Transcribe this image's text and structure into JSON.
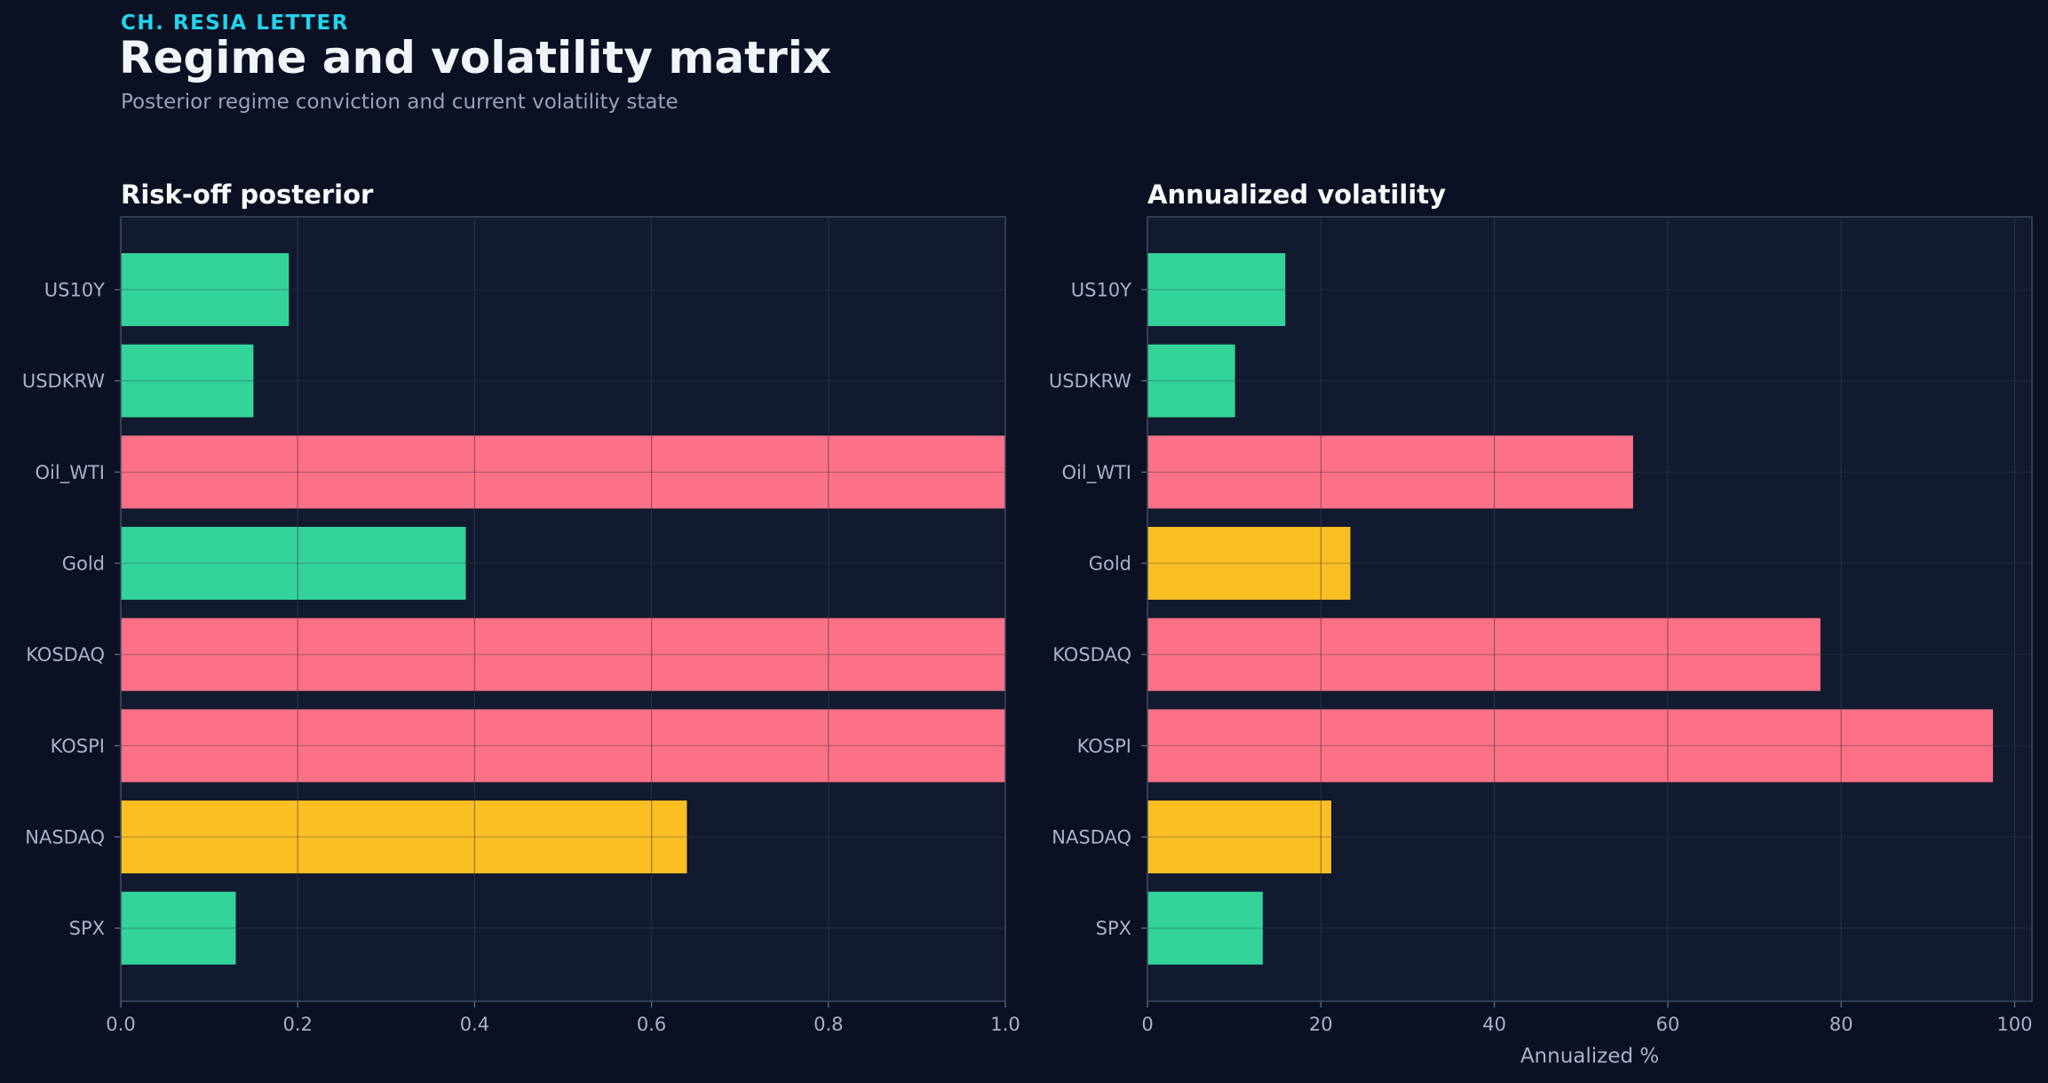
{
  "header": {
    "kicker": "CH. RESIA LETTER",
    "title": "Regime and volatility matrix",
    "subtitle": "Posterior regime conviction and current volatility state"
  },
  "colors": {
    "background": "#0b1122",
    "panel": "#121a2f",
    "green": "#34d399",
    "red": "#fb7185",
    "yellow": "#fbbf24",
    "accent": "#22d3ee"
  },
  "chart_data": [
    {
      "type": "bar",
      "orientation": "horizontal",
      "title": "Risk-off posterior",
      "xlabel": "",
      "ylabel": "",
      "xlim": [
        0,
        1.0
      ],
      "xticks": [
        "0.0",
        "0.2",
        "0.4",
        "0.6",
        "0.8",
        "1.0"
      ],
      "tick_values": [
        0,
        0.2,
        0.4,
        0.6,
        0.8,
        1.0
      ],
      "grid": true,
      "categories": [
        "US10Y",
        "USDKRW",
        "Oil_WTI",
        "Gold",
        "KOSDAQ",
        "KOSPI",
        "NASDAQ",
        "SPX"
      ],
      "values": [
        0.19,
        0.15,
        1.0,
        0.39,
        1.0,
        1.0,
        0.64,
        0.13
      ],
      "bar_colors": [
        "green",
        "green",
        "red",
        "green",
        "red",
        "red",
        "yellow",
        "green"
      ]
    },
    {
      "type": "bar",
      "orientation": "horizontal",
      "title": "Annualized volatility",
      "xlabel": "Annualized %",
      "ylabel": "",
      "xlim": [
        0,
        102
      ],
      "xticks": [
        "0",
        "20",
        "40",
        "60",
        "80",
        "100"
      ],
      "tick_values": [
        0,
        20,
        40,
        60,
        80,
        100
      ],
      "grid": true,
      "categories": [
        "US10Y",
        "USDKRW",
        "Oil_WTI",
        "Gold",
        "KOSDAQ",
        "KOSPI",
        "NASDAQ",
        "SPX"
      ],
      "values": [
        15.9,
        10.1,
        56.0,
        23.4,
        77.6,
        97.5,
        21.2,
        13.3
      ],
      "bar_colors": [
        "green",
        "green",
        "red",
        "yellow",
        "red",
        "red",
        "yellow",
        "green"
      ]
    }
  ]
}
